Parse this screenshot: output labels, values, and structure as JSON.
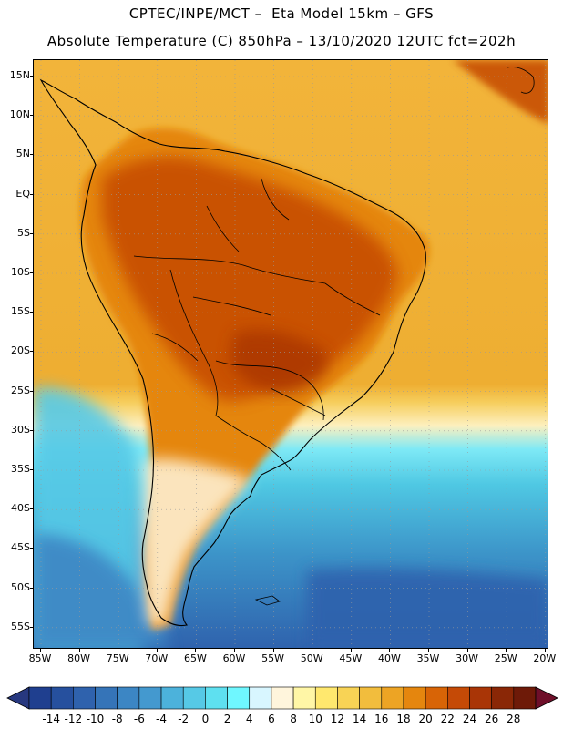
{
  "header": {
    "line1": "CPTEC/INPE/MCT –  Eta Model 15km – GFS",
    "line2": "Absolute Temperature (C) 850hPa – 13/10/2020 12UTC fct=202h"
  },
  "map": {
    "lat_labels": [
      "15N",
      "10N",
      "5N",
      "EQ",
      "5S",
      "10S",
      "15S",
      "20S",
      "25S",
      "30S",
      "35S",
      "40S",
      "45S",
      "50S",
      "55S"
    ],
    "lon_labels": [
      "85W",
      "80W",
      "75W",
      "70W",
      "65W",
      "60W",
      "55W",
      "50W",
      "45W",
      "40W",
      "35W",
      "30W",
      "25W",
      "20W"
    ]
  },
  "colorbar": {
    "labels": [
      "-14",
      "-12",
      "-10",
      "-8",
      "-6",
      "-4",
      "-2",
      "0",
      "2",
      "4",
      "6",
      "8",
      "10",
      "12",
      "14",
      "16",
      "18",
      "20",
      "22",
      "24",
      "26",
      "28"
    ],
    "colors": [
      "#1f3f8f",
      "#26509e",
      "#2f62ad",
      "#3574b8",
      "#3c86c4",
      "#4499cf",
      "#4cb2db",
      "#56c9e6",
      "#5ee0f0",
      "#6ff7ff",
      "#d8f6ff",
      "#fff5dc",
      "#fff6a6",
      "#ffe86e",
      "#f8d355",
      "#f2bd3d",
      "#eda424",
      "#e5860e",
      "#d86406",
      "#c54a06",
      "#a93506",
      "#8a2706",
      "#6e1a08"
    ],
    "under_color": "#27387f",
    "over_color": "#6f0f2a"
  }
}
